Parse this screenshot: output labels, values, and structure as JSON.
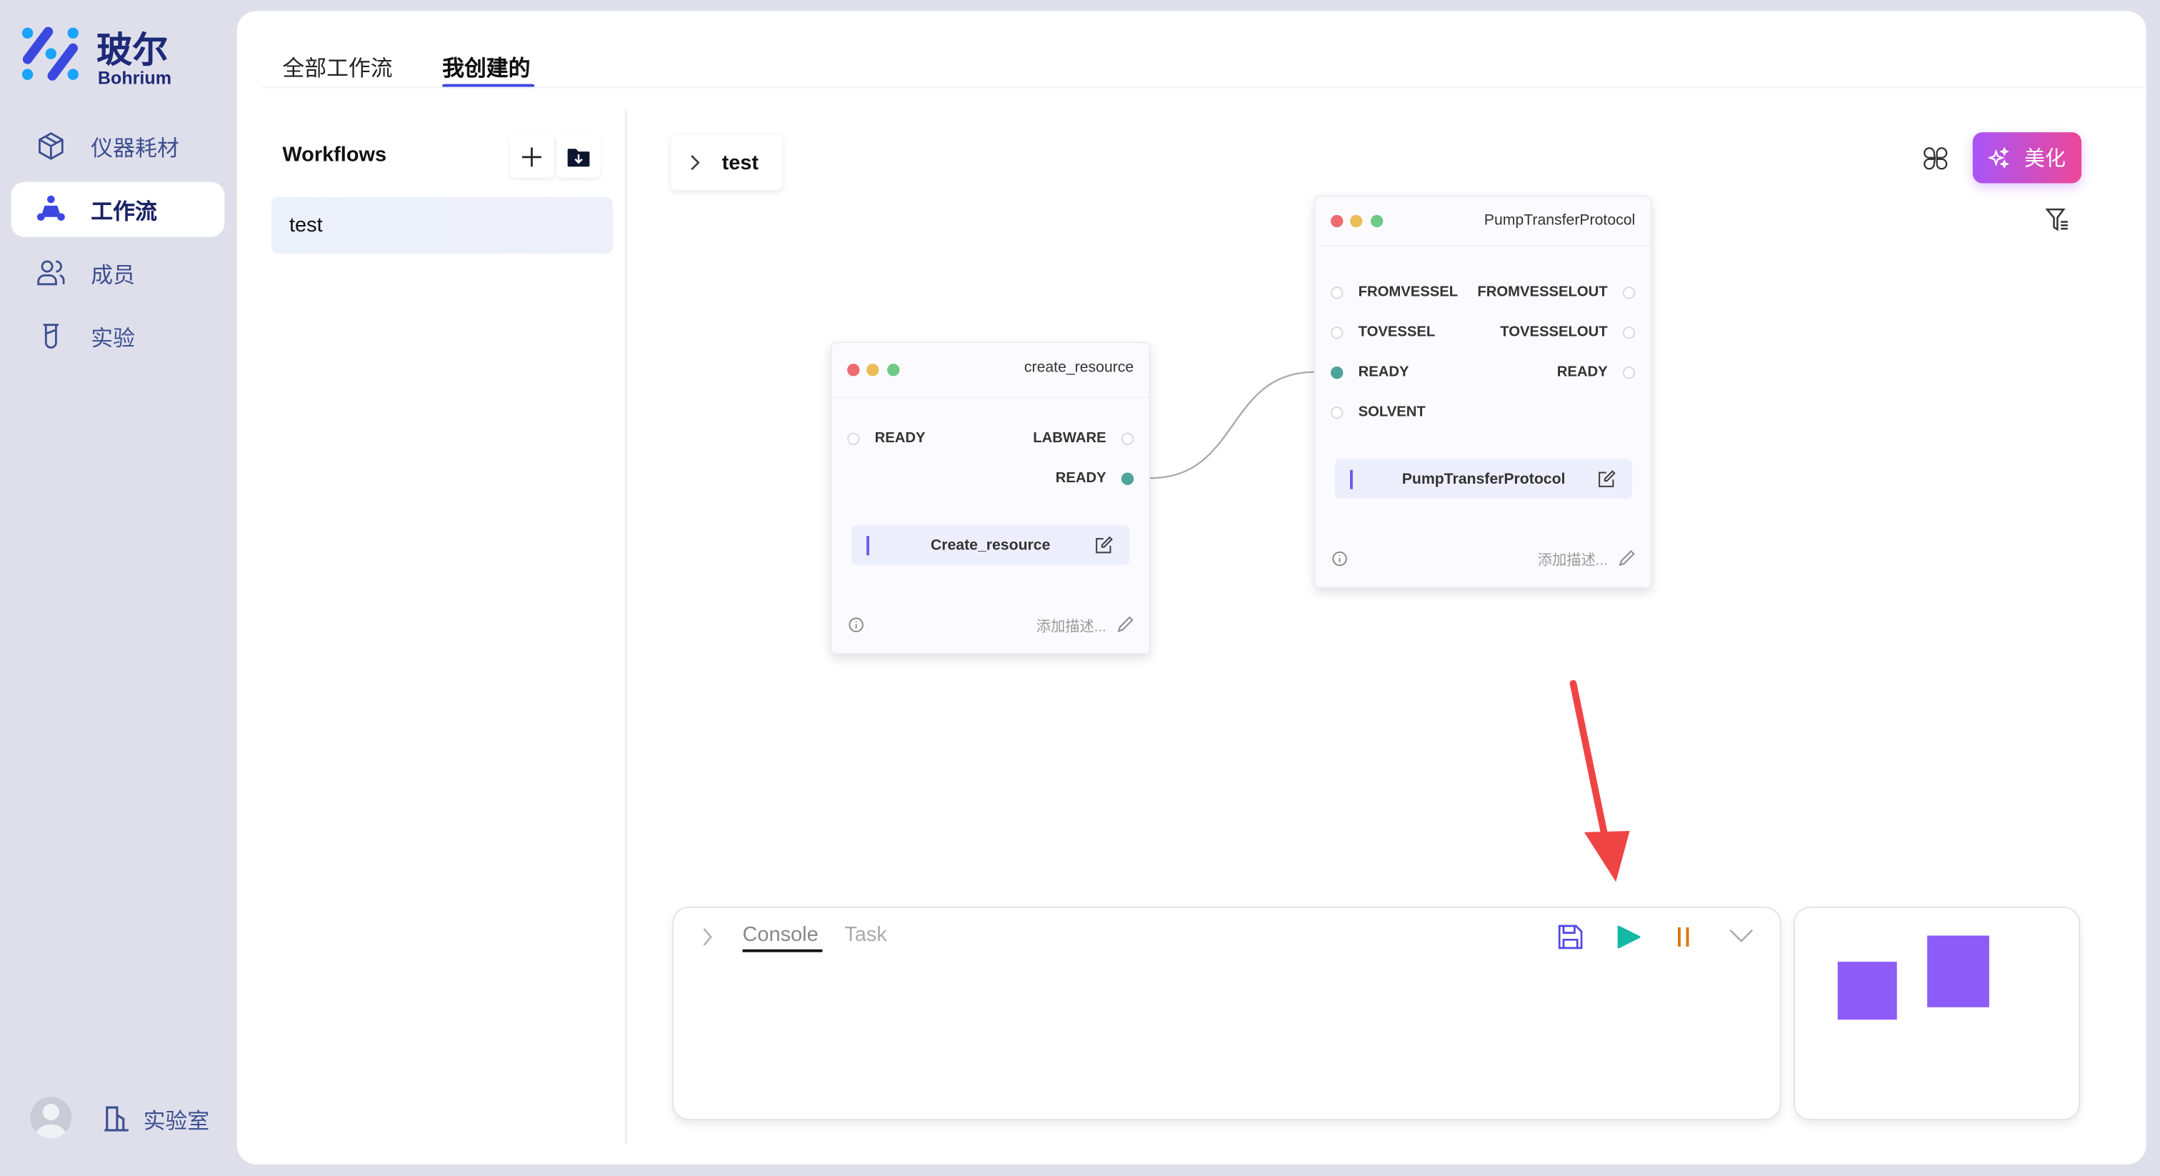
{
  "brand": {
    "name_cn": "玻尔",
    "name_en": "Bohrium"
  },
  "sidebar": {
    "items": [
      {
        "label": "仪器耗材",
        "icon": "box-icon",
        "active": false
      },
      {
        "label": "工作流",
        "icon": "workflow-icon",
        "active": true
      },
      {
        "label": "成员",
        "icon": "users-icon",
        "active": false
      },
      {
        "label": "实验",
        "icon": "flask-icon",
        "active": false
      }
    ],
    "lab_label": "实验室"
  },
  "tabs": [
    {
      "label": "全部工作流",
      "active": false
    },
    {
      "label": "我创建的",
      "active": true
    }
  ],
  "workflows": {
    "title": "Workflows",
    "items": [
      {
        "label": "test",
        "selected": true
      }
    ]
  },
  "canvas": {
    "breadcrumb": "test",
    "beautify_label": "美化",
    "nodes": [
      {
        "title": "create_resource",
        "inputs": [
          "READY"
        ],
        "outputs": [
          "LABWARE",
          "READY"
        ],
        "name": "Create_resource",
        "desc_placeholder": "添加描述..."
      },
      {
        "title": "PumpTransferProtocol",
        "inputs": [
          "FROMVESSEL",
          "TOVESSEL",
          "READY",
          "SOLVENT"
        ],
        "outputs": [
          "FROMVESSELOUT",
          "TOVESSELOUT",
          "READY"
        ],
        "name": "PumpTransferProtocol",
        "desc_placeholder": "添加描述..."
      }
    ],
    "edges": [
      {
        "from": "create_resource.READY",
        "to": "PumpTransferProtocol.READY"
      }
    ]
  },
  "console": {
    "tabs": [
      {
        "label": "Console",
        "active": true
      },
      {
        "label": "Task",
        "active": false
      }
    ]
  },
  "colors": {
    "accent": "#3b48e0",
    "connected_pin": "#4ea39c",
    "play": "#14b8a6",
    "pause": "#d97706",
    "minimap": "#8b5cf6",
    "annotation_arrow": "#ef4444"
  }
}
